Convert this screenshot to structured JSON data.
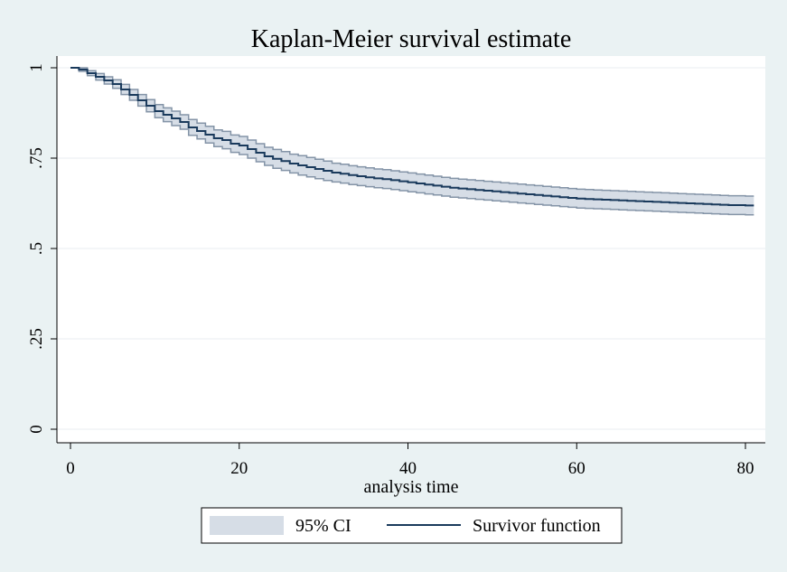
{
  "chart_data": {
    "type": "line",
    "title": "Kaplan-Meier survival estimate",
    "xlabel": "analysis time",
    "ylabel": "",
    "xlim": [
      0,
      82
    ],
    "ylim": [
      0,
      1
    ],
    "x_ticks": [
      0,
      20,
      40,
      60,
      80
    ],
    "x_tick_labels": [
      "0",
      "20",
      "40",
      "60",
      "80"
    ],
    "y_ticks": [
      0,
      0.25,
      0.5,
      0.75,
      1
    ],
    "y_tick_labels": [
      "0",
      ".25",
      ".5",
      ".75",
      "1"
    ],
    "grid": true,
    "legend_position": "bottom",
    "legend": {
      "ci_label": "95% CI",
      "line_label": "Survivor function"
    },
    "colors": {
      "background": "#eaf2f3",
      "plot_area": "#ffffff",
      "line": "#1a3a5c",
      "ci_fill": "#d6dde6",
      "ci_edge": "#8494a7",
      "grid": "#e8eef0"
    },
    "series": [
      {
        "name": "Survivor function",
        "x": [
          0,
          1,
          2,
          3,
          4,
          5,
          6,
          7,
          8,
          9,
          10,
          11,
          12,
          13,
          14,
          15,
          16,
          17,
          18,
          19,
          20,
          21,
          22,
          23,
          24,
          25,
          26,
          27,
          28,
          29,
          30,
          31,
          32,
          33,
          34,
          35,
          36,
          37,
          38,
          39,
          40,
          41,
          42,
          43,
          44,
          45,
          46,
          47,
          48,
          49,
          50,
          51,
          52,
          53,
          54,
          55,
          56,
          57,
          58,
          59,
          60,
          61,
          62,
          63,
          64,
          65,
          66,
          67,
          68,
          69,
          70,
          71,
          72,
          73,
          74,
          75,
          76,
          77,
          78,
          79,
          80,
          81
        ],
        "y": [
          1.0,
          0.995,
          0.985,
          0.975,
          0.965,
          0.955,
          0.94,
          0.925,
          0.91,
          0.895,
          0.88,
          0.87,
          0.86,
          0.85,
          0.835,
          0.825,
          0.815,
          0.805,
          0.8,
          0.79,
          0.785,
          0.775,
          0.765,
          0.755,
          0.748,
          0.742,
          0.735,
          0.73,
          0.725,
          0.72,
          0.715,
          0.71,
          0.707,
          0.703,
          0.7,
          0.697,
          0.694,
          0.692,
          0.689,
          0.686,
          0.683,
          0.68,
          0.677,
          0.674,
          0.671,
          0.668,
          0.666,
          0.664,
          0.662,
          0.66,
          0.658,
          0.656,
          0.654,
          0.652,
          0.65,
          0.648,
          0.646,
          0.644,
          0.642,
          0.64,
          0.638,
          0.637,
          0.636,
          0.635,
          0.634,
          0.633,
          0.632,
          0.631,
          0.63,
          0.629,
          0.628,
          0.627,
          0.626,
          0.625,
          0.624,
          0.623,
          0.622,
          0.621,
          0.62,
          0.62,
          0.619,
          0.619
        ],
        "lower": [
          1.0,
          0.99,
          0.978,
          0.966,
          0.955,
          0.943,
          0.926,
          0.91,
          0.894,
          0.878,
          0.862,
          0.851,
          0.84,
          0.83,
          0.813,
          0.803,
          0.792,
          0.782,
          0.776,
          0.766,
          0.76,
          0.75,
          0.74,
          0.73,
          0.722,
          0.716,
          0.709,
          0.703,
          0.698,
          0.693,
          0.688,
          0.684,
          0.681,
          0.677,
          0.674,
          0.671,
          0.668,
          0.666,
          0.663,
          0.66,
          0.657,
          0.654,
          0.651,
          0.648,
          0.645,
          0.642,
          0.64,
          0.638,
          0.636,
          0.634,
          0.632,
          0.63,
          0.628,
          0.626,
          0.624,
          0.622,
          0.62,
          0.618,
          0.616,
          0.614,
          0.612,
          0.611,
          0.61,
          0.609,
          0.608,
          0.607,
          0.606,
          0.605,
          0.604,
          0.603,
          0.602,
          0.601,
          0.6,
          0.599,
          0.598,
          0.597,
          0.596,
          0.595,
          0.594,
          0.594,
          0.593,
          0.593
        ],
        "upper": [
          1.0,
          1.0,
          0.992,
          0.984,
          0.975,
          0.967,
          0.954,
          0.94,
          0.926,
          0.912,
          0.898,
          0.889,
          0.88,
          0.87,
          0.857,
          0.847,
          0.838,
          0.828,
          0.824,
          0.814,
          0.81,
          0.8,
          0.79,
          0.78,
          0.774,
          0.768,
          0.761,
          0.757,
          0.752,
          0.747,
          0.742,
          0.736,
          0.733,
          0.729,
          0.726,
          0.723,
          0.72,
          0.718,
          0.715,
          0.712,
          0.709,
          0.706,
          0.703,
          0.7,
          0.697,
          0.694,
          0.692,
          0.69,
          0.688,
          0.686,
          0.684,
          0.682,
          0.68,
          0.678,
          0.676,
          0.674,
          0.672,
          0.67,
          0.668,
          0.666,
          0.664,
          0.663,
          0.662,
          0.661,
          0.66,
          0.659,
          0.658,
          0.657,
          0.656,
          0.655,
          0.654,
          0.653,
          0.652,
          0.651,
          0.65,
          0.649,
          0.648,
          0.647,
          0.646,
          0.646,
          0.645,
          0.645
        ]
      }
    ]
  }
}
